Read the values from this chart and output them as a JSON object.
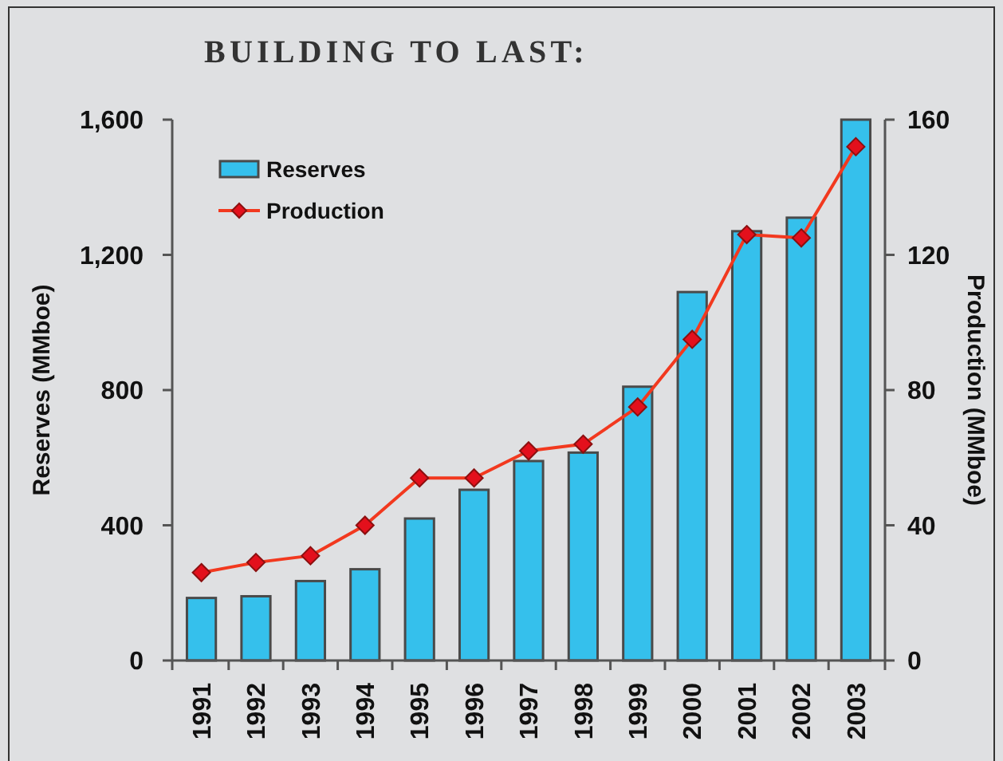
{
  "chart_data": {
    "type": "bar",
    "title": "BUILDING TO LAST:",
    "ylabel": "Reserves (MMboe)",
    "y2label": "Production (MMboe)",
    "categories": [
      "1991",
      "1992",
      "1993",
      "1994",
      "1995",
      "1996",
      "1997",
      "1998",
      "1999",
      "2000",
      "2001",
      "2002",
      "2003"
    ],
    "series": [
      {
        "name": "Reserves",
        "color": "#35c0ec",
        "values": [
          185,
          190,
          235,
          270,
          420,
          505,
          590,
          615,
          810,
          1090,
          1270,
          1310,
          1600
        ]
      },
      {
        "name": "Production",
        "type": "line",
        "axis": "y2",
        "color": "#f2391f",
        "values": [
          26,
          29,
          31,
          40,
          54,
          54,
          62,
          64,
          75,
          95,
          126,
          125,
          152
        ]
      }
    ],
    "ylim": [
      0,
      1600
    ],
    "yticks": [
      0,
      400,
      800,
      {
        "value": 1200,
        "label": "1,200"
      },
      {
        "value": 1600,
        "label": "1,600"
      }
    ],
    "y2lim": [
      0,
      160
    ],
    "y2ticks": [
      0,
      40,
      80,
      120,
      160
    ],
    "legend": "top left",
    "marker": "diamond",
    "line_style": "solid"
  }
}
